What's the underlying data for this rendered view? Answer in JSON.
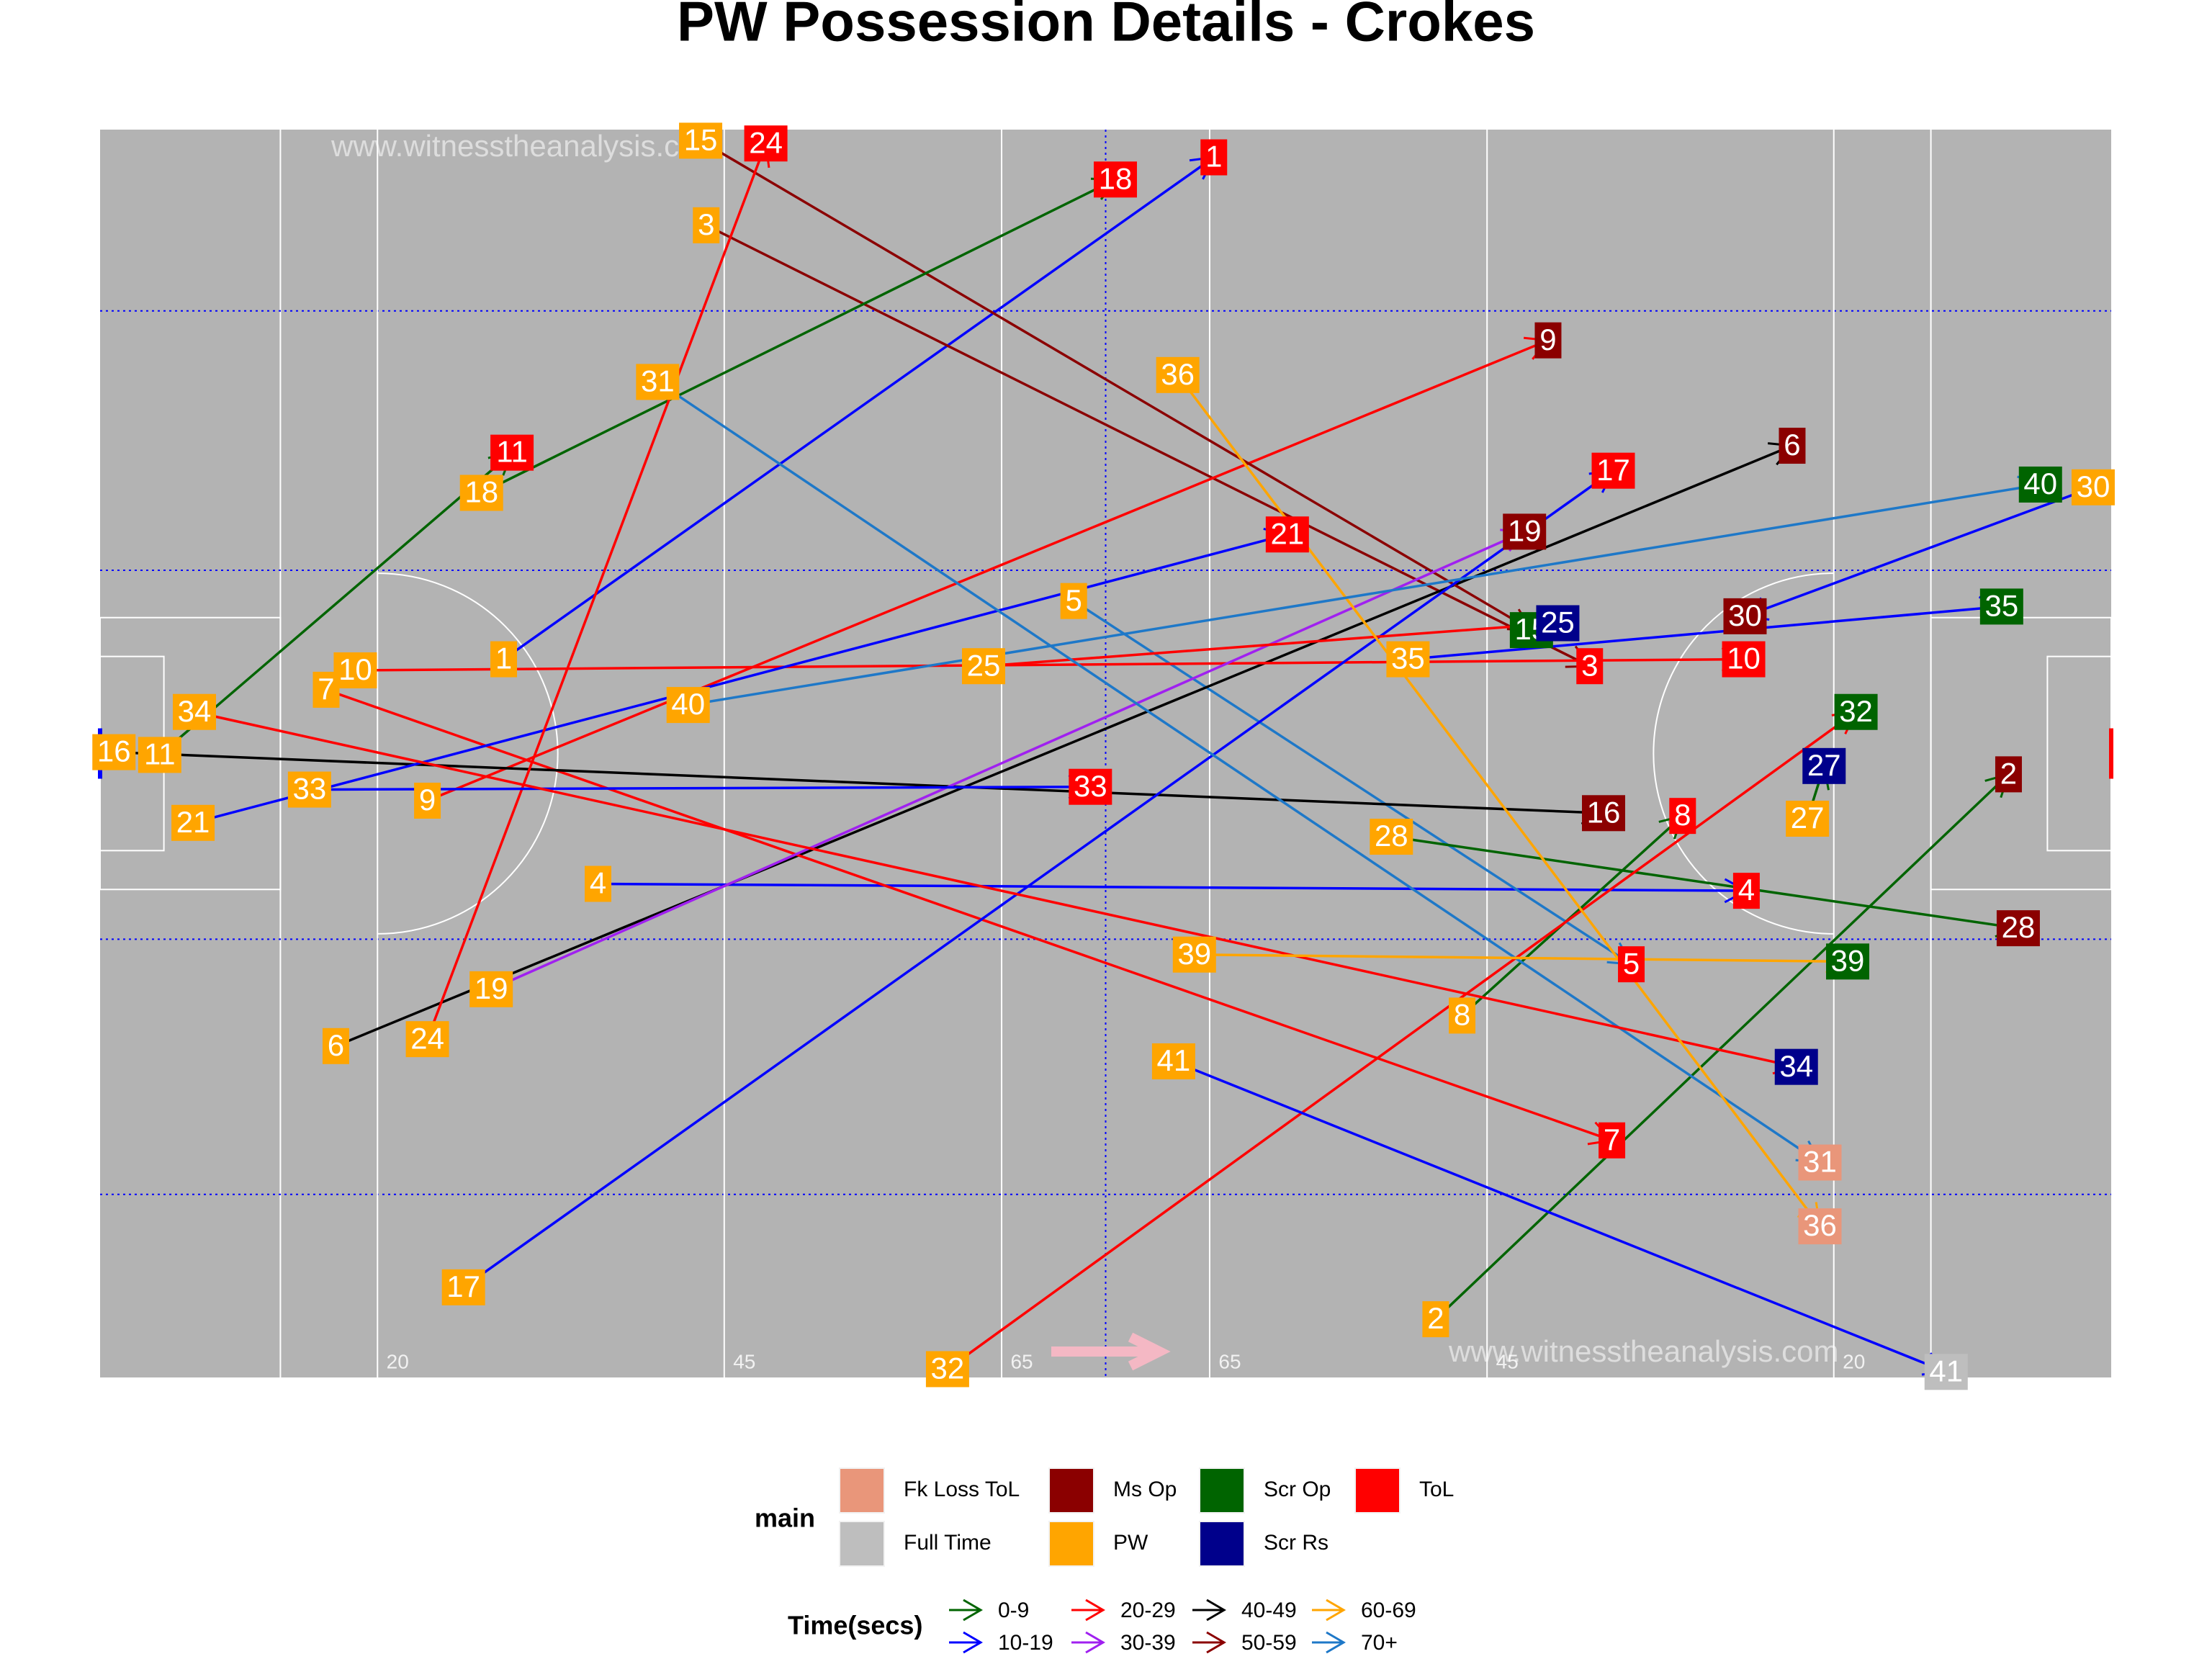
{
  "chart_data": {
    "type": "pitch",
    "title": "PW Possession Details - Crokes",
    "watermark": "www.witnesstheanalysis.com",
    "xlim": [
      0,
      145
    ],
    "ylim": [
      0,
      90
    ],
    "xticks": [
      20,
      45,
      65,
      {
        "value": 80,
        "label": "65"
      },
      {
        "value": 100,
        "label": "45"
      },
      {
        "value": 125,
        "label": "20"
      }
    ],
    "start_outcome": "PW",
    "legend_main": {
      "title": "main",
      "items": [
        {
          "name": "Fk Loss ToL",
          "color": "#E9967A"
        },
        {
          "name": "Full Time",
          "color": "#BEBEBE"
        },
        {
          "name": "Ms Op",
          "color": "#8B0000"
        },
        {
          "name": "PW",
          "color": "#FFA500"
        },
        {
          "name": "Scr Op",
          "color": "#006400"
        },
        {
          "name": "Scr Rs",
          "color": "#00008B"
        },
        {
          "name": "ToL",
          "color": "#FF0000"
        }
      ]
    },
    "legend_time": {
      "title": "Time(secs)",
      "items": [
        {
          "name": "0-9",
          "color": "#006400"
        },
        {
          "name": "10-19",
          "color": "#0000FF"
        },
        {
          "name": "20-29",
          "color": "#FF0000"
        },
        {
          "name": "30-39",
          "color": "#A020F0"
        },
        {
          "name": "40-49",
          "color": "#000000"
        },
        {
          "name": "50-59",
          "color": "#8B0000"
        },
        {
          "name": "60-69",
          "color": "#FFA500"
        },
        {
          "name": "70+",
          "color": "#1E78C8"
        }
      ]
    },
    "possessions": [
      {
        "id": 1,
        "start": [
          29.1,
          51.8
        ],
        "end": [
          80.3,
          88.0
        ],
        "outcome": "ToL",
        "time": "10-19"
      },
      {
        "id": 2,
        "start": [
          96.3,
          4.2
        ],
        "end": [
          137.6,
          43.5
        ],
        "outcome": "Ms Op",
        "time": "0-9"
      },
      {
        "id": 3,
        "start": [
          43.7,
          83.1
        ],
        "end": [
          107.4,
          51.3
        ],
        "outcome": "ToL",
        "time": "50-59"
      },
      {
        "id": 4,
        "start": [
          35.9,
          35.6
        ],
        "end": [
          118.7,
          35.1
        ],
        "outcome": "ToL",
        "time": "10-19"
      },
      {
        "id": 5,
        "start": [
          70.2,
          56.0
        ],
        "end": [
          110.4,
          29.8
        ],
        "outcome": "ToL",
        "time": "70+"
      },
      {
        "id": 6,
        "start": [
          17.0,
          23.9
        ],
        "end": [
          122.0,
          67.2
        ],
        "outcome": "Ms Op",
        "time": "40-49"
      },
      {
        "id": 7,
        "start": [
          16.3,
          49.6
        ],
        "end": [
          109.0,
          17.1
        ],
        "outcome": "ToL",
        "time": "20-29"
      },
      {
        "id": 8,
        "start": [
          98.2,
          26.1
        ],
        "end": [
          114.1,
          40.5
        ],
        "outcome": "ToL",
        "time": "0-9"
      },
      {
        "id": 9,
        "start": [
          23.6,
          41.6
        ],
        "end": [
          104.4,
          74.8
        ],
        "outcome": "Ms Op",
        "time": "20-29"
      },
      {
        "id": 10,
        "start": [
          18.4,
          51.0
        ],
        "end": [
          118.5,
          51.8
        ],
        "outcome": "ToL",
        "time": "20-29"
      },
      {
        "id": 11,
        "start": [
          4.3,
          44.9
        ],
        "end": [
          29.7,
          66.7
        ],
        "outcome": "ToL",
        "time": "0-9"
      },
      {
        "id": 15,
        "start": [
          43.3,
          89.2
        ],
        "end": [
          103.2,
          53.9
        ],
        "outcome": "Scr Op",
        "time": "50-59"
      },
      {
        "id": 16,
        "start": [
          1.0,
          45.1
        ],
        "end": [
          108.4,
          40.7
        ],
        "outcome": "Ms Op",
        "time": "40-49"
      },
      {
        "id": 17,
        "start": [
          26.2,
          6.5
        ],
        "end": [
          109.1,
          65.4
        ],
        "outcome": "ToL",
        "time": "10-19"
      },
      {
        "id": 18,
        "start": [
          27.5,
          63.8
        ],
        "end": [
          73.2,
          86.4
        ],
        "outcome": "ToL",
        "time": "0-9"
      },
      {
        "id": 19,
        "start": [
          28.2,
          28.0
        ],
        "end": [
          102.7,
          61.0
        ],
        "outcome": "Ms Op",
        "time": "30-39"
      },
      {
        "id": 21,
        "start": [
          6.7,
          40.0
        ],
        "end": [
          85.6,
          60.8
        ],
        "outcome": "ToL",
        "time": "10-19"
      },
      {
        "id": 24,
        "start": [
          23.6,
          24.4
        ],
        "end": [
          48.0,
          89.0
        ],
        "outcome": "ToL",
        "time": "20-29"
      },
      {
        "id": 25,
        "start": [
          63.7,
          51.3
        ],
        "end": [
          105.1,
          54.4
        ],
        "outcome": "Scr Rs",
        "time": "20-29"
      },
      {
        "id": 27,
        "start": [
          123.1,
          40.3
        ],
        "end": [
          124.3,
          44.1
        ],
        "outcome": "Scr Rs",
        "time": "0-9"
      },
      {
        "id": 28,
        "start": [
          93.1,
          39.0
        ],
        "end": [
          138.3,
          32.4
        ],
        "outcome": "Ms Op",
        "time": "0-9"
      },
      {
        "id": 30,
        "start": [
          143.7,
          64.2
        ],
        "end": [
          118.6,
          54.9
        ],
        "outcome": "Ms Op",
        "time": "10-19"
      },
      {
        "id": 31,
        "start": [
          40.2,
          71.8
        ],
        "end": [
          124.0,
          15.5
        ],
        "outcome": "Fk Loss ToL",
        "time": "70+"
      },
      {
        "id": 32,
        "start": [
          61.1,
          0.6
        ],
        "end": [
          126.6,
          48.0
        ],
        "outcome": "Scr Op",
        "time": "20-29"
      },
      {
        "id": 33,
        "start": [
          15.1,
          42.4
        ],
        "end": [
          71.4,
          42.6
        ],
        "outcome": "ToL",
        "time": "10-19"
      },
      {
        "id": 34,
        "start": [
          6.8,
          48.0
        ],
        "end": [
          122.3,
          22.4
        ],
        "outcome": "Scr Rs",
        "time": "20-29"
      },
      {
        "id": 35,
        "start": [
          94.3,
          51.8
        ],
        "end": [
          137.1,
          55.6
        ],
        "outcome": "Scr Op",
        "time": "10-19"
      },
      {
        "id": 36,
        "start": [
          77.7,
          72.3
        ],
        "end": [
          124.0,
          10.9
        ],
        "outcome": "Fk Loss ToL",
        "time": "60-69"
      },
      {
        "id": 39,
        "start": [
          78.9,
          30.5
        ],
        "end": [
          126.0,
          30.0
        ],
        "outcome": "Scr Op",
        "time": "60-69"
      },
      {
        "id": 40,
        "start": [
          42.4,
          48.5
        ],
        "end": [
          139.9,
          64.4
        ],
        "outcome": "Scr Op",
        "time": "70+"
      },
      {
        "id": 41,
        "start": [
          77.4,
          22.8
        ],
        "end": [
          133.1,
          0.4
        ],
        "outcome": "Full Time",
        "time": "10-19"
      }
    ]
  }
}
